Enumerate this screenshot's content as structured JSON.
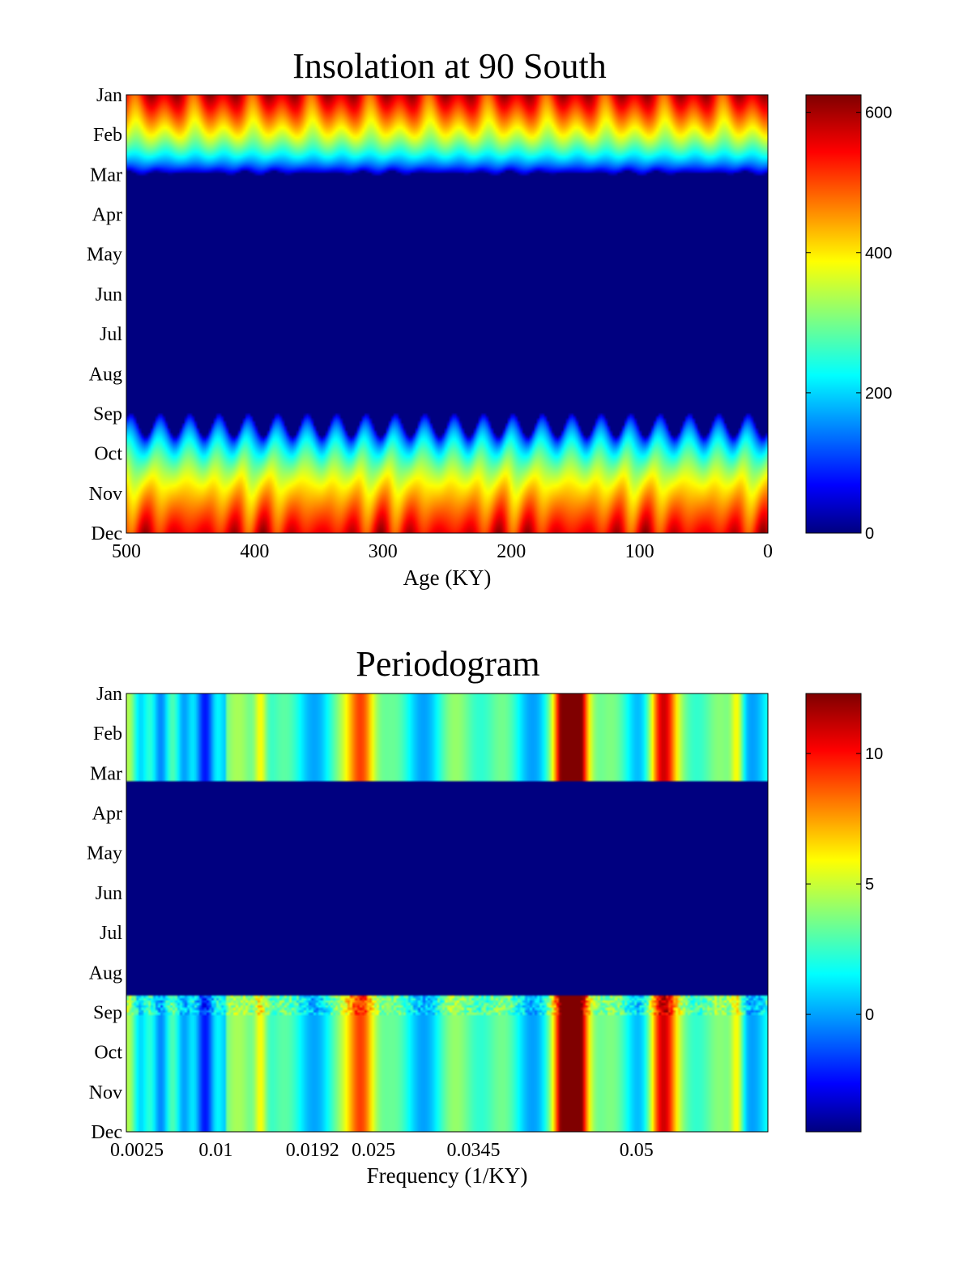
{
  "colors": {
    "colormap": "jet",
    "jet_stops": [
      "#00007f",
      "#0000ff",
      "#00ffff",
      "#ffff00",
      "#ff0000",
      "#7f0000"
    ]
  },
  "chart_data": [
    {
      "type": "heatmap",
      "title": "Insolation at 90 South",
      "xlabel": "Age (KY)",
      "ylabel": "",
      "x_ticks": [
        "500",
        "400",
        "300",
        "200",
        "100",
        "0"
      ],
      "x_tick_values": [
        500,
        400,
        300,
        200,
        100,
        0
      ],
      "xlim": [
        500,
        0
      ],
      "y_ticks": [
        "Jan",
        "Feb",
        "Mar",
        "Apr",
        "May",
        "Jun",
        "Jul",
        "Aug",
        "Sep",
        "Oct",
        "Nov",
        "Dec"
      ],
      "colorbar": {
        "ticks": [
          "0",
          "200",
          "400",
          "600"
        ],
        "tick_values": [
          0,
          200,
          400,
          600
        ],
        "clim": [
          0,
          625
        ]
      },
      "description_pattern": {
        "polar_night_months": [
          "Apr",
          "May",
          "Jun",
          "Jul",
          "Aug"
        ],
        "peak_month": "Dec",
        "max_value": 620
      }
    },
    {
      "type": "heatmap",
      "title": "Periodogram",
      "xlabel": "Frequency (1/KY)",
      "ylabel": "",
      "x_ticks": [
        "0.0025",
        "0.01",
        "0.0192",
        "0.025",
        "0.0345",
        "0.05"
      ],
      "x_tick_values": [
        0.0025,
        0.01,
        0.0192,
        0.025,
        0.0345,
        0.05
      ],
      "xlim": [
        0.0015,
        0.0625
      ],
      "y_ticks": [
        "Jan",
        "Feb",
        "Mar",
        "Apr",
        "May",
        "Jun",
        "Jul",
        "Aug",
        "Sep",
        "Oct",
        "Nov",
        "Dec"
      ],
      "colorbar": {
        "ticks": [
          "0",
          "5",
          "10"
        ],
        "tick_values": [
          0,
          5,
          10
        ],
        "clim": [
          -4.5,
          12.3
        ]
      },
      "peak_frequencies": [
        0.0142,
        0.0239,
        0.0435,
        0.0443,
        0.0525,
        0.0597
      ],
      "peak_strengths": [
        7.5,
        10,
        12,
        12,
        12,
        8
      ]
    }
  ]
}
